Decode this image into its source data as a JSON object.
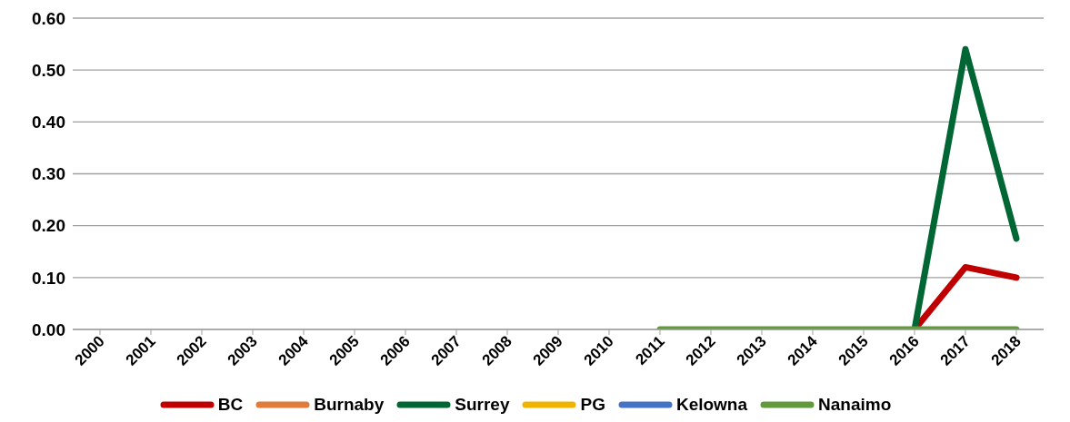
{
  "chart_data": {
    "type": "line",
    "categories": [
      "2000",
      "2001",
      "2002",
      "2003",
      "2004",
      "2005",
      "2006",
      "2007",
      "2008",
      "2009",
      "2010",
      "2011",
      "2012",
      "2013",
      "2014",
      "2015",
      "2016",
      "2017",
      "2018"
    ],
    "series": [
      {
        "name": "BC",
        "color": "#c00000",
        "values": [
          null,
          null,
          null,
          null,
          null,
          null,
          null,
          null,
          null,
          null,
          null,
          null,
          null,
          null,
          null,
          null,
          0,
          0.12,
          0.1
        ]
      },
      {
        "name": "Burnaby",
        "color": "#e07b39",
        "values": [
          null,
          null,
          null,
          null,
          null,
          null,
          null,
          null,
          null,
          null,
          null,
          null,
          null,
          null,
          null,
          null,
          null,
          null,
          null
        ]
      },
      {
        "name": "Surrey",
        "color": "#006633",
        "values": [
          null,
          null,
          null,
          null,
          null,
          null,
          null,
          null,
          null,
          null,
          null,
          null,
          null,
          null,
          null,
          null,
          0,
          0.54,
          0.175
        ]
      },
      {
        "name": "PG",
        "color": "#f0b400",
        "values": [
          null,
          null,
          null,
          null,
          null,
          null,
          null,
          null,
          null,
          null,
          null,
          null,
          null,
          null,
          null,
          null,
          null,
          null,
          null
        ]
      },
      {
        "name": "Kelowna",
        "color": "#4472c4",
        "values": [
          null,
          null,
          null,
          null,
          null,
          null,
          null,
          null,
          null,
          null,
          null,
          null,
          null,
          null,
          null,
          null,
          null,
          null,
          null
        ]
      },
      {
        "name": "Nanaimo",
        "color": "#63993d",
        "values": [
          null,
          null,
          null,
          null,
          null,
          null,
          null,
          null,
          null,
          null,
          null,
          0,
          0,
          0,
          0,
          0,
          0,
          0,
          0
        ]
      }
    ],
    "ylim": [
      0,
      0.6
    ],
    "yticks": [
      {
        "value": 0,
        "label": "0.00"
      },
      {
        "value": 0.1,
        "label": "0.10"
      },
      {
        "value": 0.2,
        "label": "0.20"
      },
      {
        "value": 0.3,
        "label": "0.30"
      },
      {
        "value": 0.4,
        "label": "0.40"
      },
      {
        "value": 0.5,
        "label": "0.50"
      },
      {
        "value": 0.6,
        "label": "0.60"
      }
    ],
    "grid": "y",
    "legend": "bottom",
    "marker": "none",
    "line_style": "solid"
  }
}
